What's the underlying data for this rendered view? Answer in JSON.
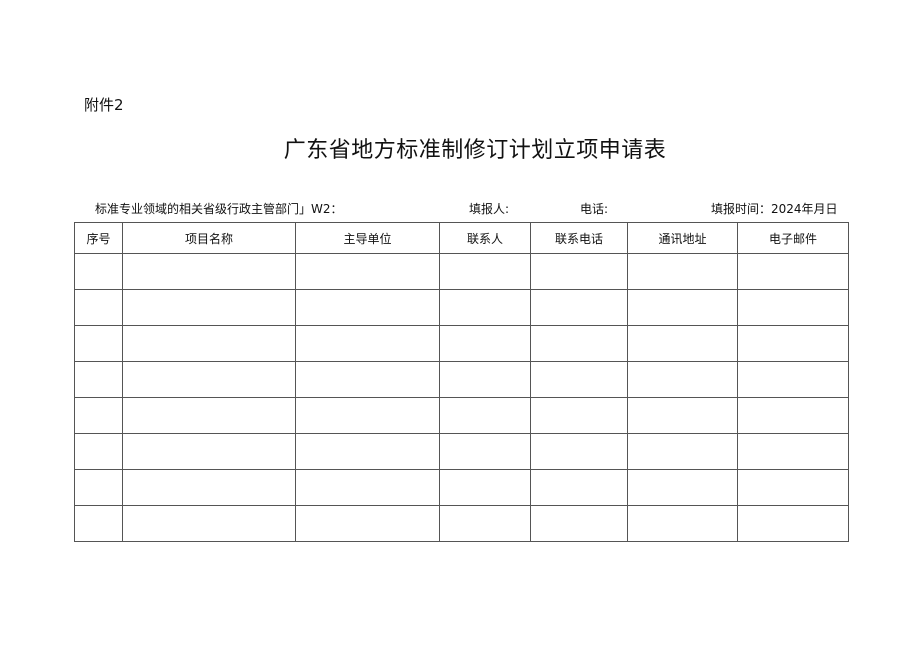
{
  "annex": "附件2",
  "title": "广东省地方标准制修订计划立项申请表",
  "meta": {
    "department_label": "标准专业领域的相关省级行政主管部门」W2：",
    "filler_label": "填报人:",
    "phone_label": "电话:",
    "date_label": "填报时间：2024年月日"
  },
  "table": {
    "headers": [
      "序号",
      "项目名称",
      "主导单位",
      "联系人",
      "联系电话",
      "通讯地址",
      "电子邮件"
    ],
    "row_count": 8
  }
}
